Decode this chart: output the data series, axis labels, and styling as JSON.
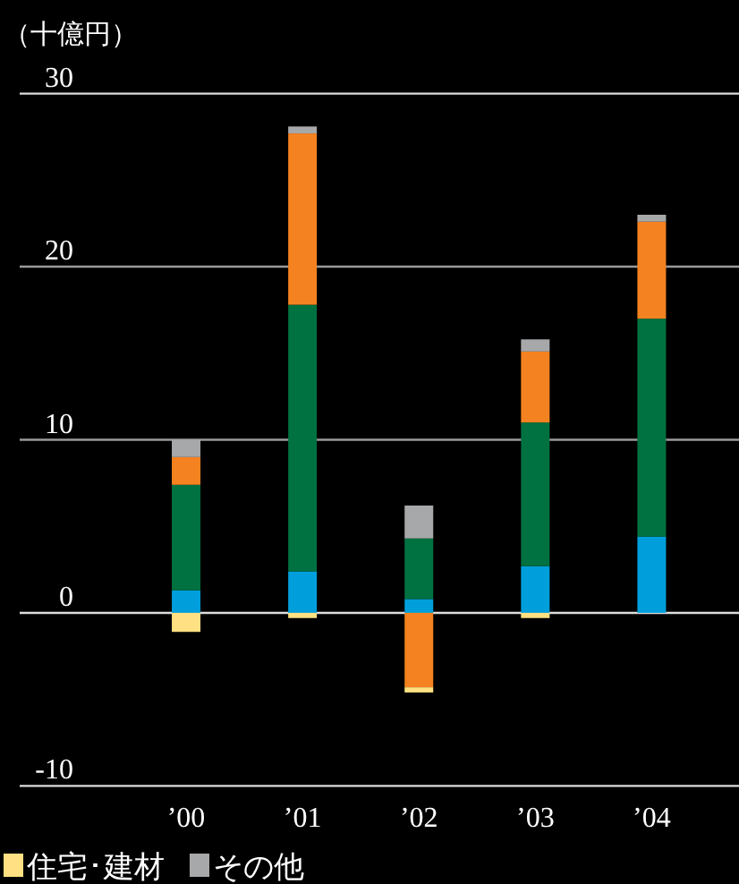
{
  "chart_data": {
    "type": "bar",
    "stacked": true,
    "ylabel": "（十億円）",
    "categories": [
      "’00",
      "’01",
      "’02",
      "’03",
      "’04"
    ],
    "series": [
      {
        "color": "#009fdb",
        "values": [
          1.3,
          2.4,
          0.8,
          2.7,
          4.4
        ]
      },
      {
        "color": "#007140",
        "values": [
          6.1,
          15.4,
          3.5,
          8.3,
          12.6
        ]
      },
      {
        "color": "#f58220",
        "values": [
          1.6,
          9.9,
          -4.3,
          4.1,
          5.6
        ]
      },
      {
        "name": "その他",
        "color": "#a7a8aa",
        "values": [
          1.0,
          0.4,
          1.9,
          0.7,
          0.4
        ]
      },
      {
        "name": "住宅･建材",
        "color": "#ffe082",
        "values": [
          -1.1,
          -0.3,
          -0.3,
          -0.3,
          null
        ]
      }
    ],
    "ylim": [
      -10,
      30
    ],
    "yticks": [
      {
        "value": -10,
        "label": "-10"
      },
      0,
      10,
      20,
      30
    ],
    "grid": "y",
    "legend": "bottom"
  }
}
